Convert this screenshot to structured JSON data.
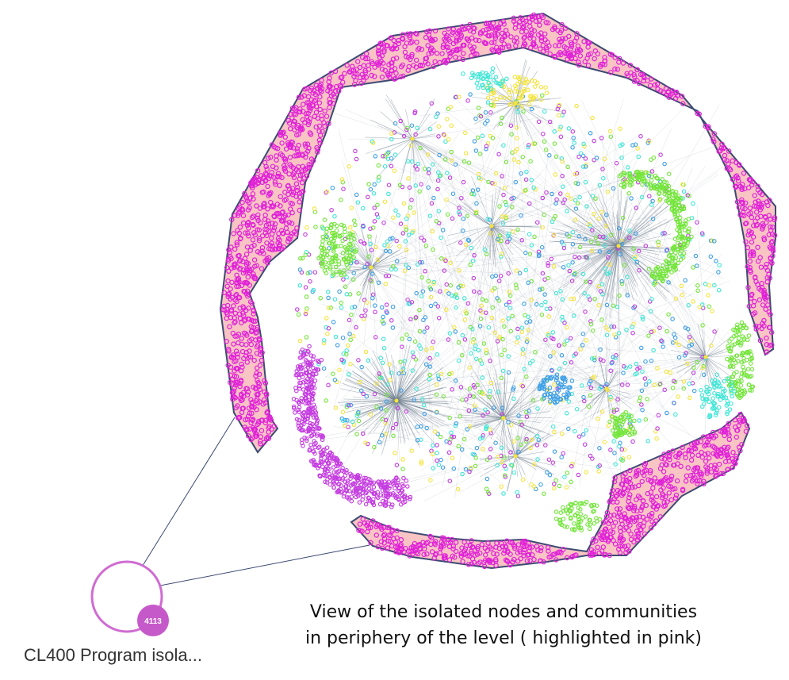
{
  "caption": {
    "line1": "View of the isolated nodes and communities",
    "line2": "in periphery of the level ( highlighted in pink)"
  },
  "zoom_node": {
    "count": "4113",
    "label": "CL400 Program isola..."
  },
  "colors": {
    "highlight_fill": "#f9c4c4",
    "highlight_outline": "#3c4a73",
    "isolated_nodes": "#e020d8",
    "edges": "#6f7f90",
    "community_green": "#73e53a",
    "community_cyan": "#3ee6d6",
    "community_yellow": "#f5e43c",
    "community_blue": "#3c9fe6",
    "community_purple": "#c43ce0",
    "zoom_circle": "#cf6cd2",
    "badge": "#c659c9"
  }
}
